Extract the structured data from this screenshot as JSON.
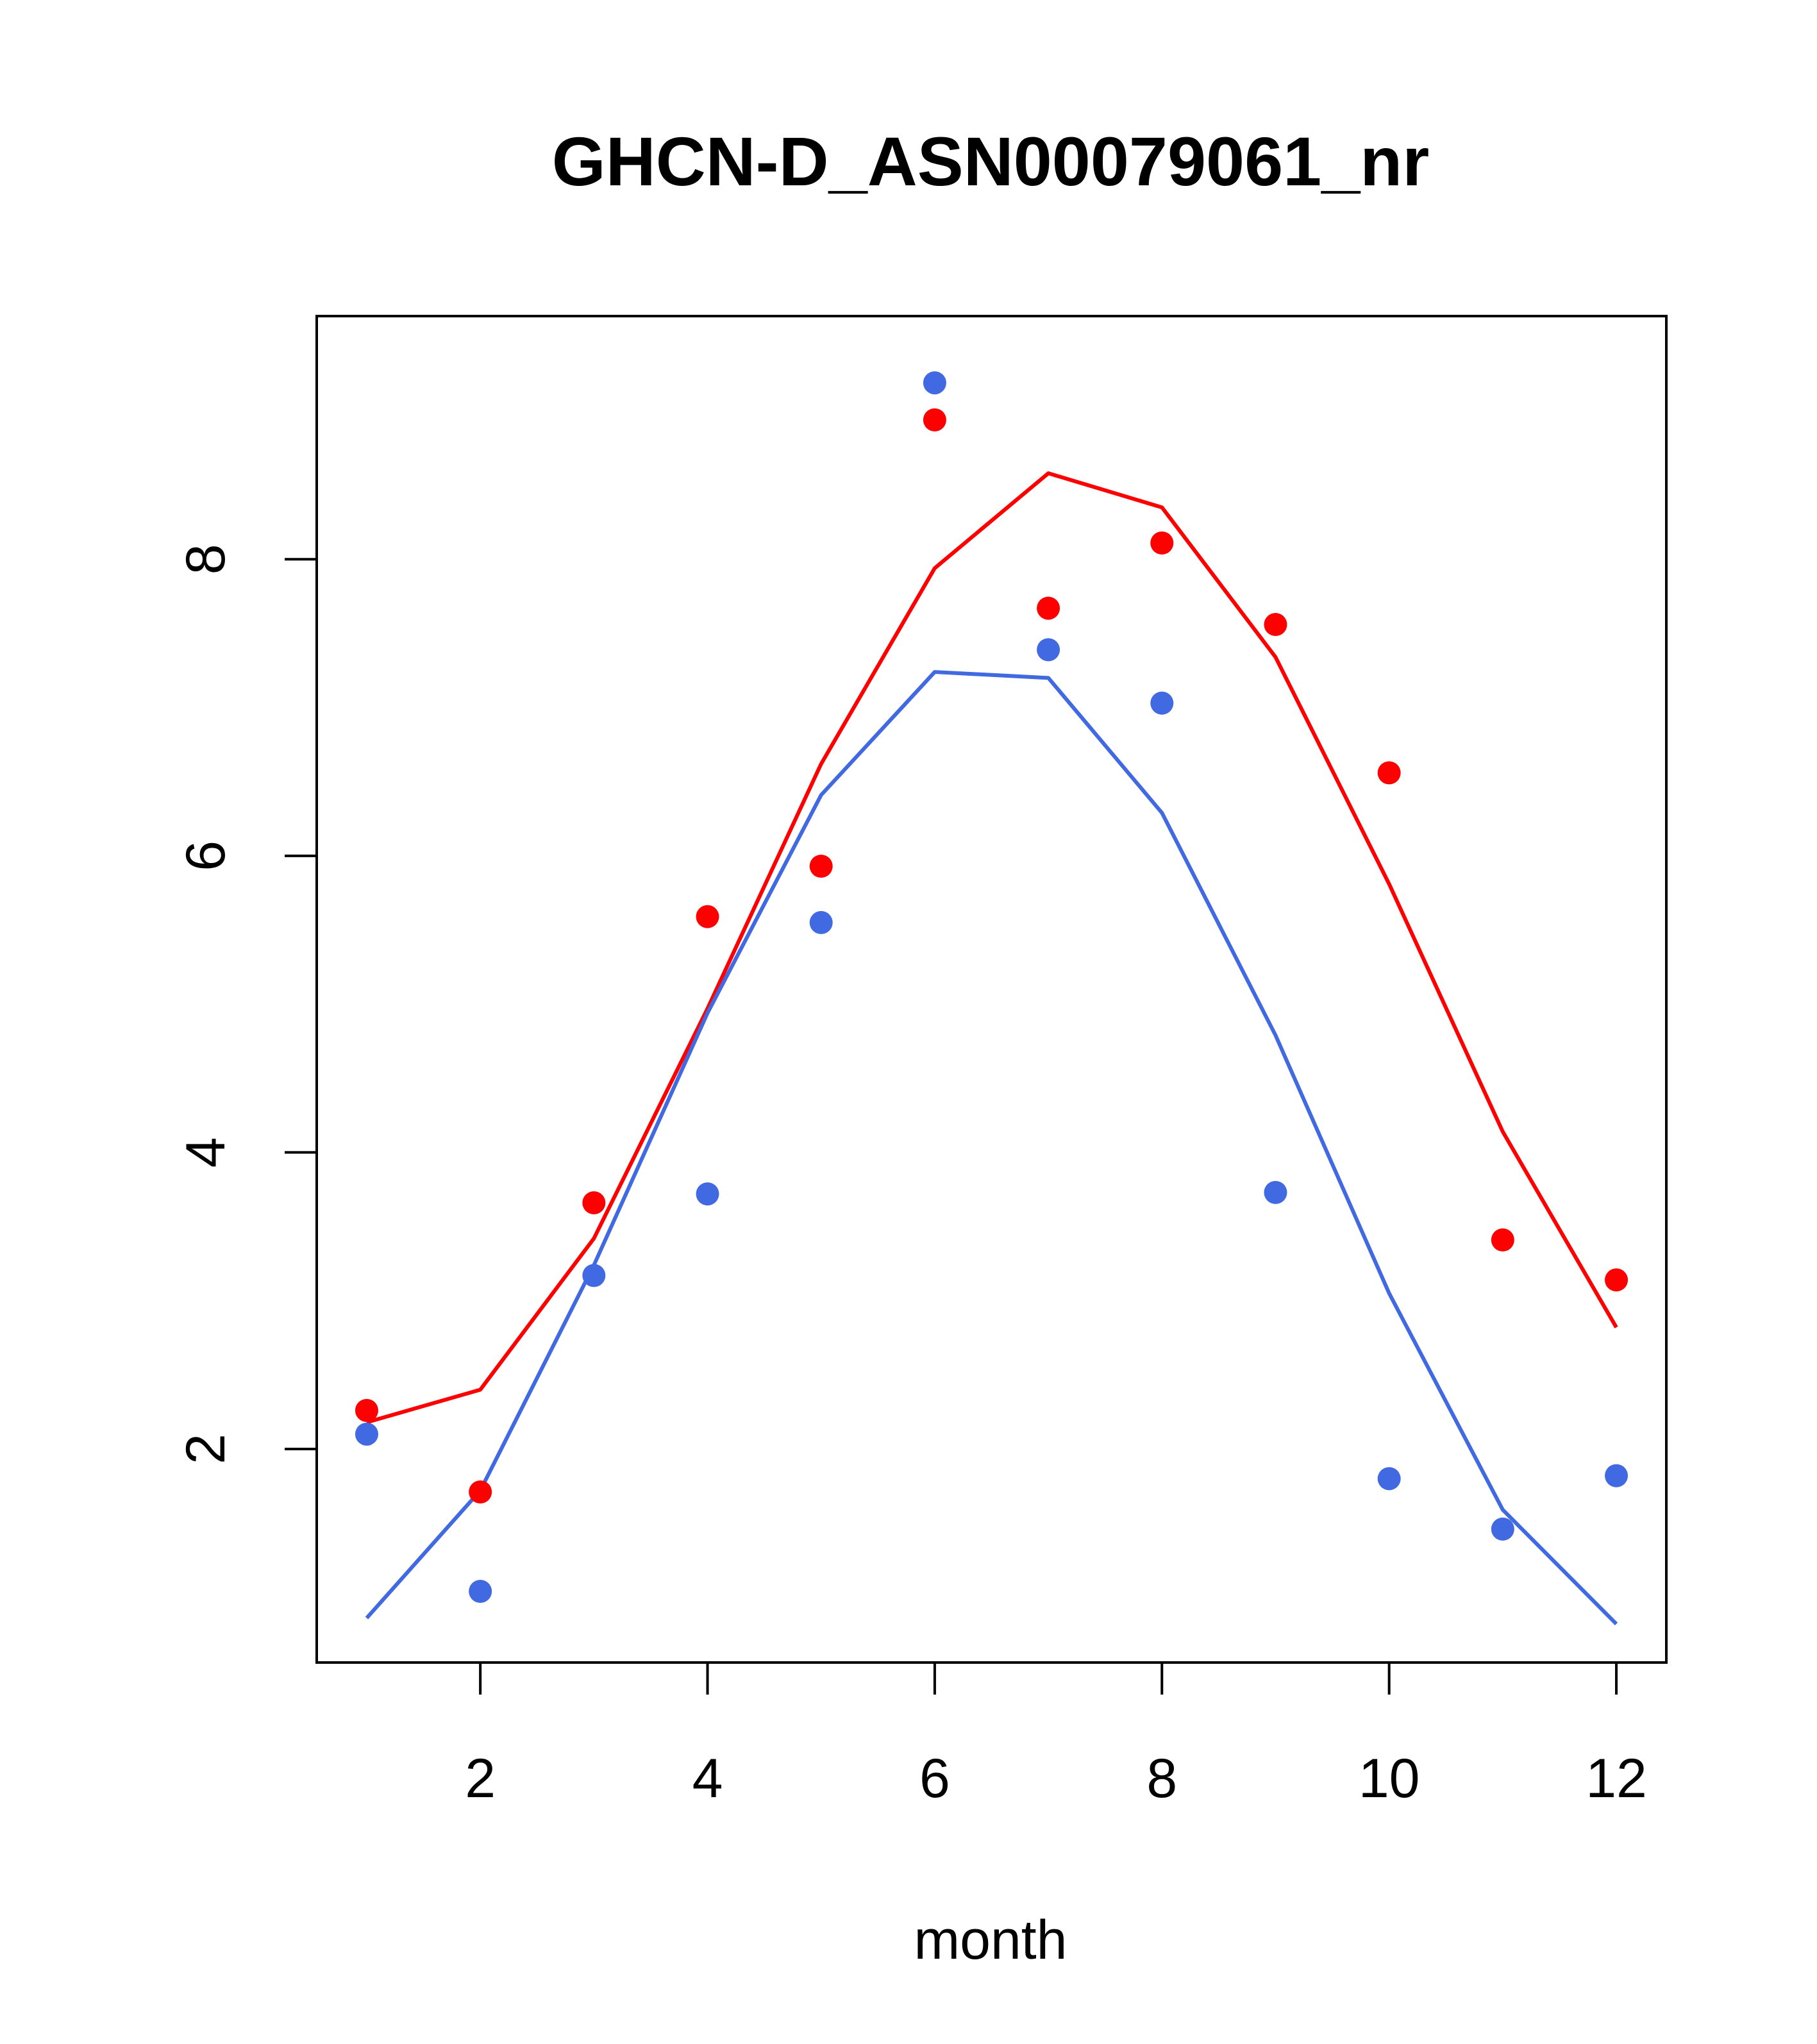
{
  "chart_data": {
    "type": "scatter",
    "title": "GHCN-D_ASN00079061_nr",
    "xlabel": "month",
    "ylabel": "",
    "xlim": [
      0.56,
      12.44
    ],
    "ylim": [
      0.56,
      9.64
    ],
    "xticks": [
      2,
      4,
      6,
      8,
      10,
      12
    ],
    "yticks": [
      2,
      4,
      6,
      8
    ],
    "grid": false,
    "legend": "none",
    "series": [
      {
        "color": "#ff0000",
        "points_x": [
          1,
          2,
          3,
          4,
          5,
          6,
          7,
          8,
          9,
          10,
          11,
          12
        ],
        "points_y": [
          2.26,
          1.71,
          3.66,
          5.59,
          5.93,
          8.94,
          7.67,
          8.11,
          7.56,
          6.56,
          3.41,
          3.14
        ],
        "line_x": [
          1,
          2,
          3,
          4,
          5,
          6,
          7,
          8,
          9,
          10,
          11,
          12
        ],
        "line_y": [
          2.18,
          2.4,
          3.42,
          4.97,
          6.62,
          7.94,
          8.58,
          8.35,
          7.34,
          5.81,
          4.14,
          2.82
        ]
      },
      {
        "color": "#4169e1",
        "points_x": [
          1,
          2,
          3,
          4,
          5,
          6,
          7,
          8,
          9,
          10,
          11,
          12
        ],
        "points_y": [
          2.1,
          1.04,
          3.17,
          3.72,
          5.55,
          9.19,
          7.39,
          7.03,
          3.73,
          1.8,
          1.46,
          1.82
        ],
        "line_x": [
          1,
          2,
          3,
          4,
          5,
          6,
          7,
          8,
          9,
          10,
          11,
          12
        ],
        "line_y": [
          0.86,
          1.72,
          3.24,
          4.94,
          6.41,
          7.24,
          7.2,
          6.29,
          4.79,
          3.05,
          1.59,
          0.82
        ]
      }
    ]
  }
}
